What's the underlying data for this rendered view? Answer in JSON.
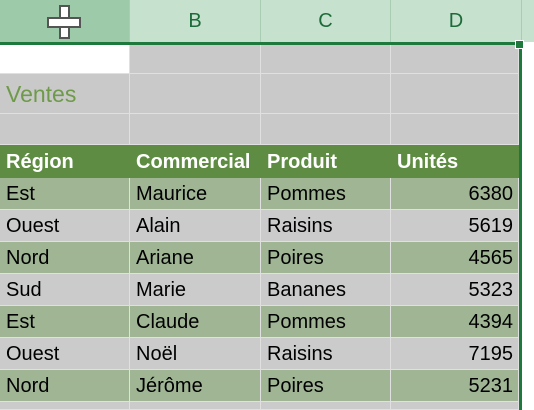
{
  "columns": [
    "B",
    "C",
    "D"
  ],
  "title": "Ventes",
  "table": {
    "headers": [
      "Région",
      "Commercial",
      "Produit",
      "Unités"
    ],
    "rows": [
      [
        "Est",
        "Maurice",
        "Pommes",
        "6380"
      ],
      [
        "Ouest",
        "Alain",
        "Raisins",
        "5619"
      ],
      [
        "Nord",
        "Ariane",
        "Poires",
        "4565"
      ],
      [
        "Sud",
        "Marie",
        "Bananes",
        "5323"
      ],
      [
        "Est",
        "Claude",
        "Pommes",
        "4394"
      ],
      [
        "Ouest",
        "Noël",
        "Raisins",
        "7195"
      ],
      [
        "Nord",
        "Jérôme",
        "Poires",
        "5231"
      ]
    ]
  },
  "colors": {
    "header_bg": "#5f8c43",
    "band_green": "#9fb594",
    "band_gray": "#cbcbcb",
    "title_color": "#6e9a4a",
    "selection": "#1e7a3c"
  }
}
